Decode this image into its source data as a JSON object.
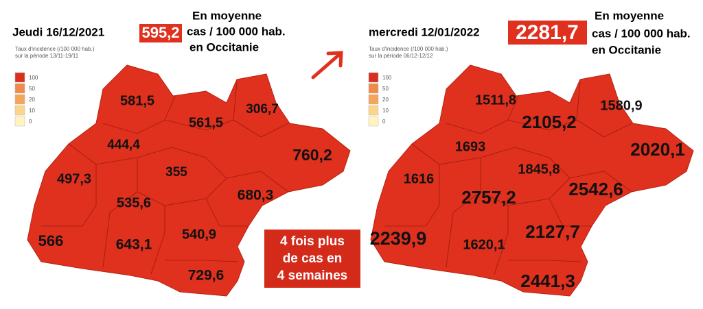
{
  "left": {
    "date": "Jeudi 16/12/2021",
    "average": "595,2",
    "caption": [
      "En moyenne",
      "cas / 100 000 hab.",
      "en Occitanie"
    ],
    "legend_title": "Taux d'incidence (/100 000 hab.)",
    "legend_period": "sur la période 13/11-19/11",
    "legend_labels": [
      "100",
      "50",
      "20",
      "10",
      "0"
    ],
    "departments": [
      "581,5",
      "561,5",
      "306,7",
      "444,4",
      "760,2",
      "497,3",
      "355",
      "680,3",
      "535,6",
      "540,9",
      "566",
      "643,1",
      "729,6"
    ]
  },
  "right": {
    "date": "mercredi 12/01/2022",
    "average": "2281,7",
    "caption": [
      "En moyenne",
      "cas / 100 000 hab.",
      "en Occitanie"
    ],
    "legend_title": "Taux d'incidence (/100 000 hab.)",
    "legend_period": "sur la période 06/12-12/12",
    "legend_labels": [
      "100",
      "50",
      "20",
      "10",
      "0"
    ],
    "departments": [
      "1511,8",
      "2105,2",
      "1580,9",
      "1693",
      "2020,1",
      "1616",
      "1845,8",
      "2757,2",
      "2542,6",
      "2239,9",
      "1620,1",
      "2127,7",
      "2441,3"
    ]
  },
  "callout": [
    "4 fois plus",
    "de cas en",
    "4 semaines"
  ]
}
